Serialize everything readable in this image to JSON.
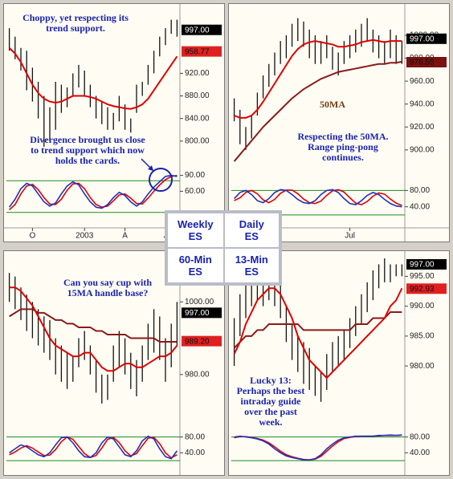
{
  "chart_data": [
    {
      "type": "ohlc",
      "title": "Weekly ES",
      "annotations": [
        {
          "text": "Choppy, yet respecting its trend support.",
          "color": "#1a22b0"
        },
        {
          "text": "Divergence brought us close to trend support which now holds the cards.",
          "color": "#1a22b0"
        }
      ],
      "categories": [
        null,
        null,
        null,
        null,
        "O",
        null,
        null,
        null,
        null,
        null,
        null,
        null,
        null,
        "2003",
        null,
        null,
        null,
        null,
        null,
        null,
        "A",
        null,
        null,
        null,
        null,
        null,
        null,
        "J",
        null,
        null
      ],
      "high": [
        1000,
        985,
        965,
        960,
        930,
        905,
        880,
        860,
        905,
        900,
        895,
        920,
        935,
        925,
        900,
        880,
        870,
        860,
        850,
        880,
        865,
        840,
        900,
        905,
        935,
        960,
        985,
        1000,
        1015,
        1015
      ],
      "low": [
        960,
        945,
        925,
        890,
        870,
        840,
        790,
        800,
        820,
        850,
        860,
        880,
        895,
        880,
        860,
        840,
        830,
        820,
        820,
        835,
        820,
        815,
        850,
        880,
        900,
        920,
        950,
        970,
        990,
        985
      ],
      "series": [
        {
          "color": "#e00000",
          "values": [
            965,
            955,
            940,
            920,
            900,
            885,
            875,
            870,
            868,
            870,
            875,
            880,
            880,
            880,
            878,
            875,
            870,
            865,
            862,
            860,
            858,
            857,
            860,
            865,
            875,
            890,
            905,
            920,
            935,
            950
          ]
        },
        {
          "color": "#e00000",
          "axis": "y2",
          "values": [
            25,
            35,
            55,
            70,
            73,
            63,
            48,
            36,
            35,
            45,
            62,
            74,
            75,
            65,
            48,
            35,
            30,
            32,
            42,
            53,
            55,
            47,
            37,
            36,
            47,
            60,
            72,
            82,
            88,
            90
          ]
        },
        {
          "color": "#2030c0",
          "axis": "y2",
          "values": [
            30,
            45,
            65,
            75,
            70,
            55,
            40,
            32,
            38,
            55,
            70,
            78,
            72,
            55,
            40,
            30,
            28,
            35,
            48,
            58,
            52,
            40,
            32,
            40,
            55,
            68,
            78,
            88,
            90,
            88
          ]
        }
      ],
      "ylim": [
        760,
        1030
      ],
      "yticks": [
        {
          "value": 800,
          "label": "800.00"
        },
        {
          "value": 840,
          "label": "840.00"
        },
        {
          "value": 880,
          "label": "880.00"
        },
        {
          "value": 920,
          "label": "920.00"
        }
      ],
      "price_tags": [
        {
          "value": 997,
          "label": "997.00",
          "color": "#000000"
        },
        {
          "value": 958.77,
          "label": "958.77",
          "color": "#e02020"
        }
      ],
      "y2lim": [
        0,
        100
      ],
      "y2ticks": [
        {
          "value": 90,
          "label": "90.00"
        },
        {
          "value": 60,
          "label": "60.00"
        }
      ],
      "y2_levels": [
        80,
        20
      ],
      "level_color": "#1e8a1e"
    },
    {
      "type": "ohlc",
      "title": "Daily ES",
      "annotations": [
        {
          "text": "Respecting the 50MA. Range ping-pong continues.",
          "color": "#1a22b0"
        },
        {
          "text": "50MA",
          "color": "#7a3a10"
        }
      ],
      "categories": [
        null,
        null,
        null,
        null,
        null,
        null,
        null,
        null,
        null,
        null,
        null,
        null,
        null,
        null,
        null,
        null,
        null,
        null,
        null,
        null,
        "Jul",
        null,
        null,
        null,
        null,
        null,
        null,
        null,
        null,
        null
      ],
      "high": [
        945,
        935,
        920,
        930,
        950,
        965,
        975,
        985,
        995,
        1000,
        1010,
        1015,
        1012,
        1005,
        1000,
        995,
        1000,
        990,
        985,
        995,
        1000,
        1005,
        1010,
        1015,
        1005,
        1000,
        995,
        1005,
        1000,
        995
      ],
      "low": [
        925,
        905,
        900,
        910,
        930,
        945,
        955,
        965,
        975,
        980,
        990,
        995,
        990,
        980,
        975,
        975,
        980,
        970,
        965,
        975,
        980,
        985,
        990,
        995,
        985,
        980,
        975,
        980,
        975,
        975
      ],
      "series": [
        {
          "color": "#8b1a1a",
          "values": [
            890,
            896,
            902,
            908,
            914,
            920,
            925,
            930,
            935,
            940,
            945,
            949,
            953,
            956,
            959,
            962,
            964,
            966,
            968,
            969,
            970,
            971,
            972,
            973,
            974,
            975,
            975,
            976,
            976,
            977
          ]
        },
        {
          "color": "#e00000",
          "values": [
            930,
            928,
            928,
            930,
            935,
            942,
            950,
            958,
            966,
            974,
            982,
            988,
            992,
            994,
            995,
            994,
            993,
            992,
            990,
            990,
            991,
            992,
            994,
            995,
            996,
            995,
            994,
            995,
            995,
            995
          ]
        },
        {
          "color": "#e00000",
          "axis": "y2",
          "values": [
            55,
            62,
            75,
            80,
            72,
            57,
            50,
            58,
            73,
            81,
            81,
            72,
            59,
            50,
            48,
            54,
            68,
            79,
            82,
            76,
            62,
            49,
            45,
            53,
            66,
            74,
            71,
            59,
            49,
            43
          ]
        },
        {
          "color": "#2030c0",
          "axis": "y2",
          "values": [
            60,
            75,
            80,
            70,
            55,
            50,
            60,
            75,
            82,
            80,
            70,
            58,
            50,
            48,
            55,
            70,
            80,
            82,
            75,
            60,
            48,
            45,
            55,
            68,
            75,
            70,
            58,
            48,
            42,
            40
          ]
        }
      ],
      "ylim": [
        888,
        1021
      ],
      "yticks": [
        {
          "value": 900,
          "label": "900.00"
        },
        {
          "value": 920,
          "label": "920.00"
        },
        {
          "value": 940,
          "label": "940.00"
        },
        {
          "value": 960,
          "label": "960.00"
        },
        {
          "value": 980,
          "label": "980.00"
        },
        {
          "value": 1000,
          "label": "1000.00"
        }
      ],
      "price_tags": [
        {
          "value": 997,
          "label": "997.00",
          "color": "#000000"
        },
        {
          "value": 976.55,
          "label": "976.55",
          "color": "#7a1010"
        }
      ],
      "y2lim": [
        0,
        130
      ],
      "y2ticks": [
        {
          "value": 80,
          "label": "80.00"
        },
        {
          "value": 40,
          "label": "40.00"
        }
      ],
      "y2_levels": [
        80,
        20
      ],
      "level_color": "#1e8a1e"
    },
    {
      "type": "ohlc",
      "title": "60-Min ES",
      "annotations": [
        {
          "text": "Can you say cup with 15MA handle base?",
          "color": "#1a22b0"
        }
      ],
      "high": [
        1008,
        1007,
        1004,
        1002,
        1000,
        998,
        996,
        995,
        990,
        988,
        986,
        985,
        990,
        992,
        988,
        984,
        980,
        980,
        988,
        992,
        990,
        986,
        984,
        988,
        994,
        998,
        996,
        990,
        994,
        1000
      ],
      "low": [
        1000,
        998,
        995,
        992,
        990,
        988,
        986,
        984,
        980,
        978,
        976,
        978,
        982,
        984,
        980,
        975,
        972,
        973,
        978,
        982,
        980,
        976,
        974,
        978,
        984,
        986,
        984,
        978,
        982,
        988
      ],
      "series": [
        {
          "color": "#8b1a1a",
          "values": [
            996,
            997,
            998,
            998,
            998,
            997,
            997,
            996,
            995,
            995,
            994,
            994,
            993,
            993,
            993,
            992,
            992,
            991,
            991,
            991,
            991,
            990,
            990,
            990,
            990,
            990,
            989,
            989,
            989,
            989
          ]
        },
        {
          "color": "#e00000",
          "values": [
            1004,
            1004,
            1003,
            1001,
            999,
            996,
            993,
            990,
            988,
            987,
            986,
            985,
            985,
            986,
            986,
            984,
            982,
            981,
            981,
            982,
            983,
            983,
            982,
            982,
            983,
            984,
            985,
            985,
            986,
            988
          ]
        },
        {
          "color": "#e00000",
          "axis": "y2",
          "values": [
            35,
            42,
            52,
            58,
            52,
            42,
            33,
            34,
            48,
            68,
            80,
            74,
            56,
            38,
            28,
            33,
            52,
            74,
            79,
            66,
            45,
            32,
            38,
            58,
            77,
            79,
            63,
            40,
            27,
            35
          ]
        },
        {
          "color": "#2030c0",
          "axis": "y2",
          "values": [
            40,
            50,
            60,
            55,
            45,
            35,
            30,
            40,
            60,
            78,
            80,
            65,
            45,
            30,
            28,
            40,
            65,
            80,
            75,
            55,
            35,
            30,
            45,
            70,
            82,
            75,
            50,
            30,
            25,
            45
          ]
        }
      ],
      "ylim": [
        970,
        1012
      ],
      "yticks": [
        {
          "value": 1000,
          "label": "1000.00"
        },
        {
          "value": 980,
          "label": "980.00"
        }
      ],
      "price_tags": [
        {
          "value": 997,
          "label": "997.00",
          "color": "#000000"
        },
        {
          "value": 989.2,
          "label": "989.20",
          "color": "#e02020"
        }
      ],
      "y2lim": [
        0,
        130
      ],
      "y2ticks": [
        {
          "value": 80,
          "label": "80.00"
        },
        {
          "value": 40,
          "label": "40.00"
        }
      ],
      "y2_levels": [
        80,
        20
      ],
      "level_color": "#1e8a1e"
    },
    {
      "type": "ohlc",
      "title": "13-Min ES",
      "annotations": [
        {
          "text": "Lucky 13: Perhaps the best intraday guide over the past week.",
          "color": "#1a22b0"
        }
      ],
      "high": [
        988,
        992,
        994,
        995,
        996,
        995,
        996,
        995,
        994,
        990,
        987,
        985,
        984,
        983,
        980,
        979,
        982,
        984,
        985,
        986,
        988,
        990,
        992,
        994,
        996,
        997,
        998,
        997,
        997,
        997
      ],
      "low": [
        980,
        985,
        988,
        990,
        991,
        990,
        991,
        990,
        988,
        984,
        981,
        979,
        977,
        976,
        975,
        974,
        976,
        979,
        980,
        981,
        983,
        985,
        987,
        989,
        991,
        993,
        994,
        994,
        995,
        995
      ],
      "series": [
        {
          "color": "#8b1a1a",
          "values": [
            983,
            984,
            985,
            985,
            986,
            986,
            987,
            987,
            987,
            987,
            987,
            987,
            986,
            986,
            986,
            986,
            986,
            986,
            986,
            986,
            986,
            987,
            987,
            987,
            988,
            988,
            988,
            989,
            989,
            989
          ]
        },
        {
          "color": "#e00000",
          "values": [
            982,
            984,
            987,
            989,
            991,
            992,
            993,
            993,
            992,
            990,
            988,
            985,
            983,
            981,
            980,
            979,
            978,
            979,
            980,
            981,
            982,
            983,
            984,
            985,
            986,
            987,
            988,
            990,
            991,
            993
          ]
        },
        {
          "color": "#e00000",
          "axis": "y2",
          "values": [
            78,
            81,
            81,
            79,
            76,
            72,
            65,
            55,
            44,
            35,
            30,
            26,
            23,
            22,
            24,
            31,
            44,
            57,
            68,
            76,
            79,
            81,
            82,
            82,
            82,
            83,
            84,
            84,
            84,
            85
          ]
        },
        {
          "color": "#2030c0",
          "axis": "y2",
          "values": [
            80,
            82,
            80,
            78,
            75,
            70,
            62,
            50,
            40,
            32,
            28,
            25,
            22,
            22,
            25,
            35,
            50,
            62,
            72,
            78,
            80,
            82,
            82,
            82,
            82,
            84,
            84,
            85,
            84,
            85
          ]
        }
      ],
      "ylim": [
        972.5,
        998
      ],
      "yticks": [
        {
          "value": 995,
          "label": "995.00"
        },
        {
          "value": 990,
          "label": "990.00"
        },
        {
          "value": 985,
          "label": "985.00"
        },
        {
          "value": 980,
          "label": "980.00"
        }
      ],
      "price_tags": [
        {
          "value": 997,
          "label": "997.00",
          "color": "#000000"
        },
        {
          "value": 992.93,
          "label": "992.93",
          "color": "#e02020"
        }
      ],
      "y2lim": [
        0,
        130
      ],
      "y2ticks": [
        {
          "value": 80,
          "label": "80.00"
        },
        {
          "value": 40,
          "label": "40.00"
        }
      ],
      "y2_levels": [
        80,
        20
      ],
      "level_color": "#1e8a1e"
    }
  ]
}
